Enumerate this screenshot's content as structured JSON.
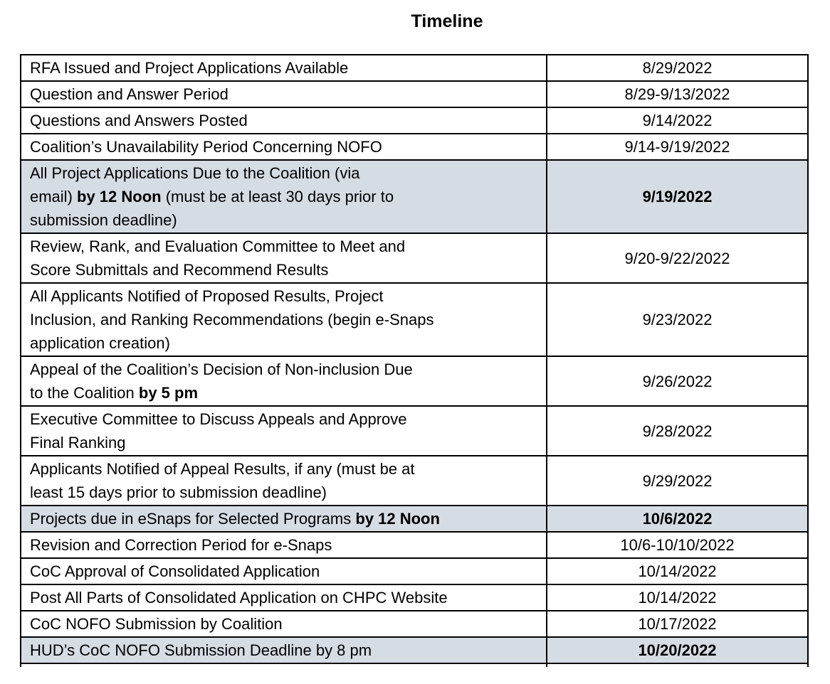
{
  "title": "Timeline",
  "colors": {
    "highlight_row_background": "#d6dce4",
    "table_border": "#000000",
    "text": "#000000",
    "page_background": "#ffffff"
  },
  "table": {
    "columns": [
      "event",
      "date"
    ],
    "rows": [
      {
        "event": [
          {
            "t": "RFA Issued and Project Applications Available",
            "b": false
          }
        ],
        "date": "8/29/2022",
        "highlight": false,
        "date_bold": false,
        "date_valign": "middle",
        "single": true
      },
      {
        "event": [
          {
            "t": "Question and Answer Period",
            "b": false
          }
        ],
        "date": "8/29-9/13/2022",
        "highlight": false,
        "date_bold": false,
        "date_valign": "middle",
        "single": true
      },
      {
        "event": [
          {
            "t": "Questions and Answers Posted",
            "b": false
          }
        ],
        "date": "9/14/2022",
        "highlight": false,
        "date_bold": false,
        "date_valign": "middle",
        "single": true
      },
      {
        "event": [
          {
            "t": "Coalition’s Unavailability Period Concerning NOFO",
            "b": false
          }
        ],
        "date": "9/14-9/19/2022",
        "highlight": false,
        "date_bold": false,
        "date_valign": "middle",
        "single": true
      },
      {
        "event": [
          {
            "t": "All Project Applications Due to the Coalition (via\nemail) ",
            "b": false
          },
          {
            "t": "by 12 Noon",
            "b": true
          },
          {
            "t": " (must be at least 30 days prior to\nsubmission deadline)",
            "b": false
          }
        ],
        "date": "9/19/2022",
        "highlight": true,
        "date_bold": true,
        "date_valign": "top",
        "single": false
      },
      {
        "event": [
          {
            "t": "Review, Rank, and Evaluation Committee to Meet and\nScore Submittals and Recommend Results",
            "b": false
          }
        ],
        "date": "9/20-9/22/2022",
        "highlight": false,
        "date_bold": false,
        "date_valign": "middle",
        "single": false
      },
      {
        "event": [
          {
            "t": "All Applicants Notified of Proposed Results, Project\nInclusion, and Ranking Recommendations (begin e-Snaps\napplication creation)",
            "b": false
          }
        ],
        "date": "9/23/2022",
        "highlight": false,
        "date_bold": false,
        "date_valign": "top",
        "single": false
      },
      {
        "event": [
          {
            "t": "Appeal of the Coalition’s Decision of Non-inclusion Due\nto the Coalition ",
            "b": false
          },
          {
            "t": "by 5 pm",
            "b": true
          }
        ],
        "date": "9/26/2022",
        "highlight": false,
        "date_bold": false,
        "date_valign": "middle",
        "single": false
      },
      {
        "event": [
          {
            "t": "Executive Committee to Discuss Appeals and Approve\nFinal Ranking",
            "b": false
          }
        ],
        "date": "9/28/2022",
        "highlight": false,
        "date_bold": false,
        "date_valign": "middle",
        "single": false
      },
      {
        "event": [
          {
            "t": "Applicants Notified of Appeal Results, if any (must be at\nleast 15 days prior to submission deadline)",
            "b": false
          }
        ],
        "date": "9/29/2022",
        "highlight": false,
        "date_bold": false,
        "date_valign": "middle",
        "single": false
      },
      {
        "event": [
          {
            "t": "Projects due in eSnaps for Selected Programs ",
            "b": false
          },
          {
            "t": "by 12 Noon",
            "b": true
          }
        ],
        "date": "10/6/2022",
        "highlight": true,
        "date_bold": true,
        "date_valign": "middle",
        "single": true
      },
      {
        "event": [
          {
            "t": "Revision and Correction Period for e-Snaps",
            "b": false
          }
        ],
        "date": "10/6-10/10/2022",
        "highlight": false,
        "date_bold": false,
        "date_valign": "middle",
        "single": true
      },
      {
        "event": [
          {
            "t": "CoC Approval of Consolidated Application",
            "b": false
          }
        ],
        "date": "10/14/2022",
        "highlight": false,
        "date_bold": false,
        "date_valign": "middle",
        "single": true
      },
      {
        "event": [
          {
            "t": "Post All Parts of Consolidated Application on CHPC Website",
            "b": false
          }
        ],
        "date": "10/14/2022",
        "highlight": false,
        "date_bold": false,
        "date_valign": "middle",
        "single": true
      },
      {
        "event": [
          {
            "t": "CoC NOFO Submission by Coalition",
            "b": false
          }
        ],
        "date": "10/17/2022",
        "highlight": false,
        "date_bold": false,
        "date_valign": "middle",
        "single": true
      },
      {
        "event": [
          {
            "t": "HUD’s CoC NOFO Submission Deadline by 8 pm",
            "b": false
          }
        ],
        "date": "10/20/2022",
        "highlight": true,
        "date_bold": true,
        "date_valign": "middle",
        "single": true
      }
    ]
  }
}
